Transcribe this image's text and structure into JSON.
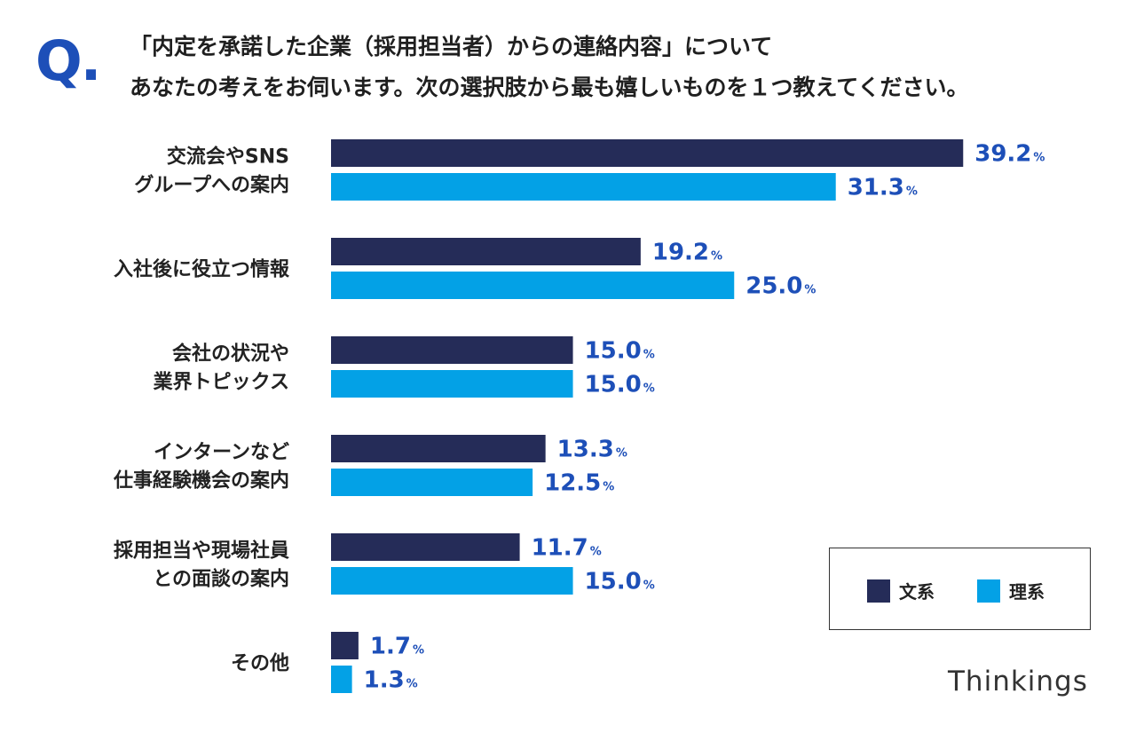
{
  "question": {
    "mark": "Q.",
    "line1": "「内定を承諾した企業（採用担当者）からの連絡内容」について",
    "line2": "あなたの考えをお伺います。次の選択肢から最も嬉しいものを１つ教えてください。"
  },
  "legend": {
    "bunkei": "文系",
    "rikei": "理系"
  },
  "brand": "Thinkings",
  "colors": {
    "bunkei": "#252c58",
    "rikei": "#03a1e6",
    "value_text": "#1d4fb8"
  },
  "chart_data": {
    "type": "bar",
    "orientation": "horizontal",
    "categories": [
      [
        "交流会やSNS",
        "グループへの案内"
      ],
      [
        "入社後に役立つ情報"
      ],
      [
        "会社の状況や",
        "業界トピックス"
      ],
      [
        "インターンなど",
        "仕事経験機会の案内"
      ],
      [
        "採用担当や現場社員",
        "との面談の案内"
      ],
      [
        "その他"
      ]
    ],
    "series": [
      {
        "name": "文系",
        "values": [
          39.2,
          19.2,
          15.0,
          13.3,
          11.7,
          1.7
        ]
      },
      {
        "name": "理系",
        "values": [
          31.3,
          25.0,
          15.0,
          12.5,
          15.0,
          1.3
        ]
      }
    ],
    "value_suffix": "%",
    "xlim": [
      0,
      45
    ],
    "grid": false,
    "legend_position": "bottom-right"
  }
}
